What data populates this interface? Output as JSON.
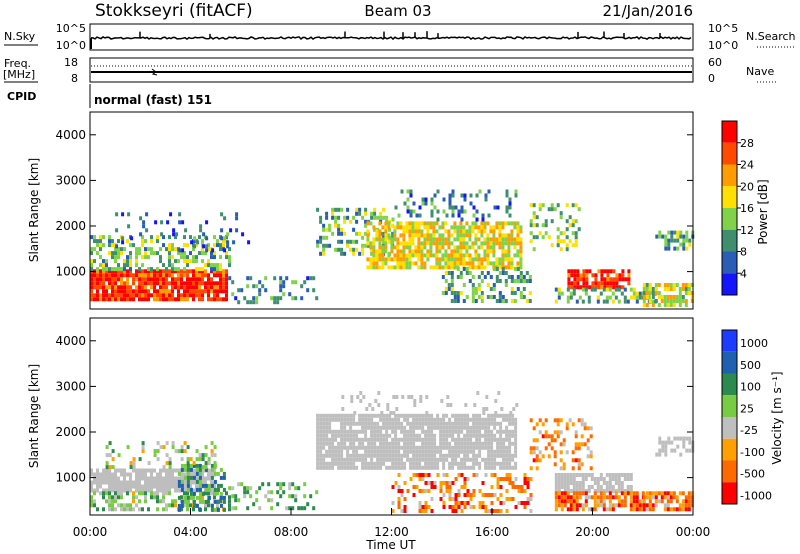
{
  "header": {
    "station": "Stokkseyri (fitACF)",
    "beam": "Beam 03",
    "date": "21/Jan/2016"
  },
  "top_panels": {
    "nsky_label": "N.Sky",
    "nsky_ticks": [
      "10^5",
      "10^0"
    ],
    "nsearch_label": "N.Search",
    "freq_label_line1": "Freq.",
    "freq_label_line2": "[MHz]",
    "freq_ticks": [
      "18",
      "8"
    ],
    "nave_label": "Nave",
    "nave_ticks": [
      "60",
      "0"
    ],
    "cpid_label": "CPID",
    "cpid_text": "normal (fast) 151"
  },
  "colors": {
    "power_scale": [
      "#1414ff",
      "#2a5db5",
      "#3f8f6f",
      "#7fd24a",
      "#ffe000",
      "#ff9d00",
      "#ff4a00",
      "#ff0000"
    ],
    "velocity_scale": [
      "#1e3cff",
      "#2060b0",
      "#2c8a4f",
      "#77cc44",
      "#bfbfbf",
      "#ffa000",
      "#ff6a00",
      "#ff0000"
    ],
    "ground_scatter": "#bebebe"
  },
  "chart_data": [
    {
      "type": "heatmap",
      "name": "power",
      "xlabel": "",
      "ylabel": "Slant Range [km]",
      "xlim": [
        0,
        24
      ],
      "ylim": [
        180,
        4500
      ],
      "y_ticks": [
        1000,
        2000,
        3000,
        4000
      ],
      "colorbar_label": "Power [dB]",
      "colorbar_ticks": [
        4,
        8,
        12,
        16,
        20,
        24,
        28
      ],
      "colorbar_range": [
        0,
        32
      ],
      "regions": [
        {
          "t0": 0.0,
          "t1": 5.4,
          "r0": 350,
          "r1": 1050,
          "level": 6.5,
          "density": 0.9
        },
        {
          "t0": 0.0,
          "t1": 5.5,
          "r0": 1050,
          "r1": 1800,
          "level": 2.8,
          "density": 0.45
        },
        {
          "t0": 1.0,
          "t1": 6.5,
          "r0": 1500,
          "r1": 2300,
          "level": 1.2,
          "density": 0.12
        },
        {
          "t0": 5.5,
          "t1": 9.0,
          "r0": 300,
          "r1": 900,
          "level": 1.8,
          "density": 0.25
        },
        {
          "t0": 9.0,
          "t1": 12.0,
          "r0": 1400,
          "r1": 2400,
          "level": 2.5,
          "density": 0.4
        },
        {
          "t0": 11.0,
          "t1": 17.2,
          "r0": 1100,
          "r1": 2100,
          "level": 4.0,
          "density": 0.75
        },
        {
          "t0": 12.0,
          "t1": 17.0,
          "r0": 2100,
          "r1": 2800,
          "level": 1.5,
          "density": 0.2
        },
        {
          "t0": 14.0,
          "t1": 17.5,
          "r0": 350,
          "r1": 1100,
          "level": 2.3,
          "density": 0.35
        },
        {
          "t0": 17.5,
          "t1": 19.5,
          "r0": 1500,
          "r1": 2500,
          "level": 3.0,
          "density": 0.35
        },
        {
          "t0": 19.0,
          "t1": 21.5,
          "r0": 650,
          "r1": 1050,
          "level": 6.8,
          "density": 0.85
        },
        {
          "t0": 18.5,
          "t1": 22.5,
          "r0": 300,
          "r1": 650,
          "level": 2.4,
          "density": 0.45
        },
        {
          "t0": 22.0,
          "t1": 24.0,
          "r0": 300,
          "r1": 750,
          "level": 3.8,
          "density": 0.7
        },
        {
          "t0": 22.5,
          "t1": 24.0,
          "r0": 1500,
          "r1": 1900,
          "level": 2.2,
          "density": 0.5
        }
      ]
    },
    {
      "type": "heatmap",
      "name": "velocity",
      "xlabel": "Time UT",
      "ylabel": "Slant Range [km]",
      "xlim": [
        0,
        24
      ],
      "ylim": [
        180,
        4500
      ],
      "y_ticks": [
        1000,
        2000,
        3000,
        4000
      ],
      "x_ticks": [
        "00:00",
        "04:00",
        "08:00",
        "12:00",
        "16:00",
        "20:00",
        "00:00"
      ],
      "colorbar_label": "Velocity [m s⁻¹]",
      "colorbar_ticks": [
        1000,
        500,
        100,
        25,
        -25,
        -100,
        -500,
        -1000
      ],
      "regions": [
        {
          "t0": 0.0,
          "t1": 5.0,
          "r0": 700,
          "r1": 1200,
          "level": "gs",
          "density": 0.9
        },
        {
          "t0": 0.0,
          "t1": 5.5,
          "r0": 300,
          "r1": 700,
          "level": 3.2,
          "density": 0.55
        },
        {
          "t0": 3.5,
          "t1": 5.3,
          "r0": 300,
          "r1": 1300,
          "level": 2.0,
          "density": 0.5
        },
        {
          "t0": 0.5,
          "t1": 5.0,
          "r0": 1200,
          "r1": 1800,
          "level": 3.5,
          "density": 0.25
        },
        {
          "t0": 5.5,
          "t1": 9.0,
          "r0": 300,
          "r1": 900,
          "level": 3.0,
          "density": 0.25
        },
        {
          "t0": 9.0,
          "t1": 17.0,
          "r0": 1200,
          "r1": 2400,
          "level": "gs",
          "density": 0.85
        },
        {
          "t0": 10.0,
          "t1": 17.0,
          "r0": 2400,
          "r1": 2900,
          "level": "gs",
          "density": 0.15
        },
        {
          "t0": 12.0,
          "t1": 17.5,
          "r0": 300,
          "r1": 1100,
          "level": 5.6,
          "density": 0.35
        },
        {
          "t0": 17.5,
          "t1": 20.0,
          "r0": 1200,
          "r1": 2300,
          "level": 5.3,
          "density": 0.3
        },
        {
          "t0": 18.5,
          "t1": 21.5,
          "r0": 700,
          "r1": 1100,
          "level": "gs",
          "density": 0.8
        },
        {
          "t0": 18.5,
          "t1": 22.0,
          "r0": 300,
          "r1": 700,
          "level": 5.8,
          "density": 0.8
        },
        {
          "t0": 22.0,
          "t1": 24.0,
          "r0": 300,
          "r1": 700,
          "level": 5.5,
          "density": 0.7
        },
        {
          "t0": 22.5,
          "t1": 24.0,
          "r0": 1500,
          "r1": 1900,
          "level": "gs",
          "density": 0.55
        }
      ]
    }
  ]
}
